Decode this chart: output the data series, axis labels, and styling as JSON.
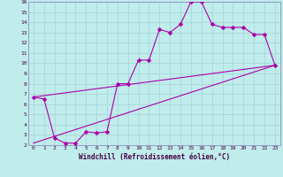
{
  "xlabel": "Windchill (Refroidissement éolien,°C)",
  "bg_color": "#c0ecec",
  "grid_color": "#a8d8d8",
  "line_color": "#aa00aa",
  "xlim": [
    -0.5,
    23.5
  ],
  "ylim": [
    2,
    16
  ],
  "xticks": [
    0,
    1,
    2,
    3,
    4,
    5,
    6,
    7,
    8,
    9,
    10,
    11,
    12,
    13,
    14,
    15,
    16,
    17,
    18,
    19,
    20,
    21,
    22,
    23
  ],
  "yticks": [
    2,
    3,
    4,
    5,
    6,
    7,
    8,
    9,
    10,
    11,
    12,
    13,
    14,
    15,
    16
  ],
  "curve_x": [
    0,
    1,
    2,
    3,
    4,
    5,
    6,
    7,
    8,
    9,
    10,
    11,
    12,
    13,
    14,
    15,
    16,
    17,
    18,
    19,
    20,
    21,
    22,
    23
  ],
  "curve_y": [
    6.7,
    6.5,
    2.7,
    2.2,
    2.2,
    3.3,
    3.2,
    3.3,
    8.0,
    8.0,
    10.3,
    10.3,
    13.3,
    13.0,
    13.8,
    16.0,
    16.0,
    13.8,
    13.5,
    13.5,
    13.5,
    12.8,
    12.8,
    9.8
  ],
  "line1_x": [
    0,
    23
  ],
  "line1_y": [
    6.7,
    9.8
  ],
  "line2_x": [
    0,
    23
  ],
  "line2_y": [
    2.2,
    9.8
  ],
  "marker": "D",
  "marker_size": 2.5,
  "lw": 0.8
}
